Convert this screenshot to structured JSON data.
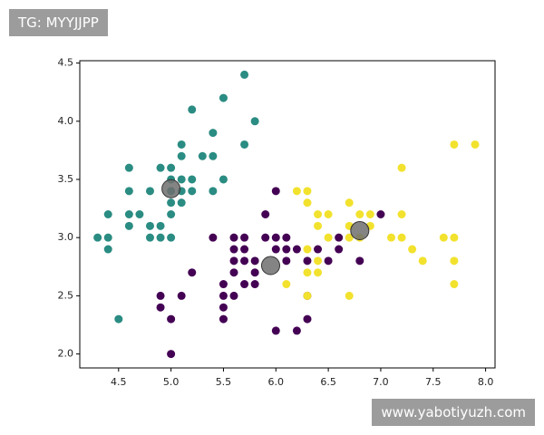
{
  "watermarks": [
    "TG: MYYJJPP",
    "www.yabotiyuzh.com"
  ],
  "chart_data": {
    "type": "scatter",
    "xlim": [
      4.13,
      8.09
    ],
    "ylim": [
      1.88,
      4.52
    ],
    "xticks": [
      {
        "value": 4.5,
        "label": "4.5"
      },
      {
        "value": 5,
        "label": "5.0"
      },
      {
        "value": 5.5,
        "label": "5.5"
      },
      {
        "value": 6,
        "label": "6.0"
      },
      {
        "value": 6.5,
        "label": "6.5"
      },
      {
        "value": 7,
        "label": "7.0"
      },
      {
        "value": 7.5,
        "label": "7.5"
      },
      {
        "value": 8,
        "label": "8.0"
      }
    ],
    "yticks": [
      {
        "value": 2,
        "label": "2.0"
      },
      {
        "value": 2.5,
        "label": "2.5"
      },
      {
        "value": 3,
        "label": "3.0"
      },
      {
        "value": 3.5,
        "label": "3.5"
      },
      {
        "value": 4,
        "label": "4.0"
      },
      {
        "value": 4.5,
        "label": "4.5"
      }
    ],
    "series": [
      {
        "color": "#2a8c82",
        "x": [
          5.7,
          5.5,
          5.2,
          5.8,
          5.4,
          5.1,
          5.7,
          5.1,
          5.3,
          5.4,
          4.6,
          5.0,
          4.9,
          5.0,
          5.1,
          5.2,
          5.5,
          4.6,
          4.8,
          5.0,
          5.1,
          5.2,
          5.4,
          5.0,
          5.1,
          4.4,
          4.6,
          4.7,
          5.0,
          4.3,
          4.4,
          4.8,
          4.9,
          5.0,
          4.4,
          4.5,
          4.6,
          4.8,
          4.9
        ],
        "values": [
          4.4,
          4.2,
          4.1,
          4.0,
          3.9,
          3.8,
          3.8,
          3.7,
          3.7,
          3.7,
          3.6,
          3.6,
          3.6,
          3.5,
          3.5,
          3.5,
          3.5,
          3.4,
          3.4,
          3.4,
          3.4,
          3.4,
          3.4,
          3.3,
          3.3,
          3.2,
          3.2,
          3.2,
          3.2,
          3.0,
          3.0,
          3.0,
          3.0,
          3.0,
          2.9,
          2.3,
          3.1,
          3.1,
          3.1
        ]
      },
      {
        "color": "#440154",
        "x": [
          6.0,
          5.9,
          5.4,
          5.5,
          4.9,
          4.9,
          5.0,
          5.0,
          5.1,
          5.2,
          5.5,
          5.5,
          5.6,
          5.6,
          5.6,
          5.6,
          5.6,
          5.7,
          5.7,
          5.7,
          5.7,
          5.8,
          5.8,
          5.8,
          5.9,
          6.0,
          6.0,
          6.0,
          6.1,
          6.1,
          6.1,
          6.2,
          6.2,
          6.3,
          6.3,
          6.4,
          6.5,
          6.6,
          6.6,
          6.8,
          7.0,
          5.5,
          6.3
        ],
        "values": [
          3.4,
          3.2,
          3.0,
          2.4,
          2.5,
          2.4,
          2.3,
          2.0,
          2.5,
          2.7,
          2.6,
          2.5,
          3.0,
          2.9,
          2.8,
          2.7,
          2.5,
          3.0,
          2.9,
          2.8,
          2.6,
          2.7,
          2.6,
          2.8,
          3.0,
          3.0,
          2.9,
          2.2,
          3.0,
          2.9,
          2.8,
          2.9,
          2.2,
          2.5,
          2.3,
          2.9,
          2.8,
          3.0,
          2.9,
          2.8,
          3.2,
          2.3,
          2.8
        ]
      },
      {
        "color": "#f2e22e",
        "x": [
          7.9,
          7.7,
          7.2,
          6.2,
          6.3,
          6.3,
          6.4,
          6.5,
          6.7,
          6.7,
          6.8,
          6.9,
          6.9,
          7.2,
          6.4,
          6.5,
          6.7,
          6.8,
          7.1,
          7.2,
          7.6,
          7.7,
          7.3,
          6.3,
          6.4,
          7.4,
          7.7,
          6.3,
          6.4,
          6.1,
          7.7,
          6.7,
          6.3
        ],
        "values": [
          3.8,
          3.8,
          3.6,
          3.4,
          3.4,
          3.3,
          3.2,
          3.2,
          3.3,
          3.1,
          3.2,
          3.1,
          3.2,
          3.2,
          3.1,
          3.0,
          3.0,
          3.0,
          3.0,
          3.0,
          3.0,
          3.0,
          2.9,
          2.9,
          2.8,
          2.8,
          2.8,
          2.7,
          2.7,
          2.6,
          2.6,
          2.5,
          2.5
        ]
      },
      {
        "color": "#6e6e6e",
        "x": [
          5.0,
          5.95,
          6.8
        ],
        "values": [
          3.42,
          2.76,
          3.06
        ]
      }
    ]
  }
}
